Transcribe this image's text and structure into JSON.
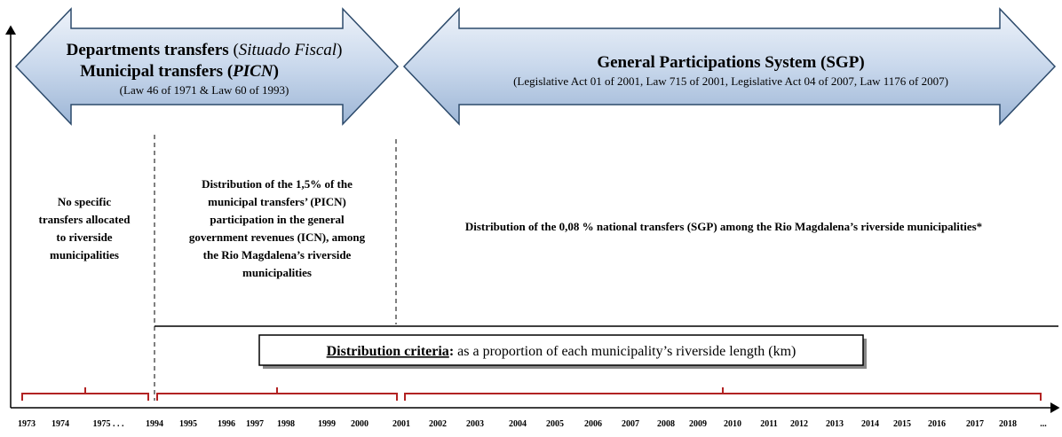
{
  "left_arrow": {
    "line1": [
      "Departments transfers ",
      "(",
      "Situado Fiscal",
      ")"
    ],
    "line2": [
      "Municipal transfers (",
      "PICN",
      ")"
    ],
    "line3": "(Law 46 of 1971 & Law 60 of 1993)"
  },
  "right_arrow": {
    "title": "General Participations System (SGP)",
    "subtitle": "(Legislative Act 01 of 2001, Law 715 of 2001, Legislative Act 04 of 2007, Law 1176 of 2007)"
  },
  "periods": [
    {
      "lines": [
        "No specific",
        "transfers allocated",
        "to riverside",
        "municipalities"
      ]
    },
    {
      "lines": [
        "Distribution of the 1,5% of the",
        "municipal transfers’ (PICN)",
        "participation in the general",
        "government revenues (ICN), among",
        "the Rio Magdalena’s riverside",
        "municipalities"
      ]
    },
    {
      "lines": [
        "Distribution of the 0,08 % national transfers (SGP) among the Rio Magdalena’s riverside municipalities*"
      ]
    }
  ],
  "criteria": [
    "Distribution criteria",
    ":",
    " as a proportion of each municipality’s riverside length (km)"
  ],
  "timeline": [
    "1973",
    "1974",
    "1975 . . .",
    "1994",
    "1995",
    "1996",
    "1997",
    "1998",
    "1999",
    "2000",
    "2001",
    "2002",
    "2003",
    "2004",
    "2005",
    "2006",
    "2007",
    "2008",
    "2009",
    "2010",
    "2011",
    "2012",
    "2013",
    "2014",
    "2015",
    "2016",
    "2017",
    "2018",
    "..."
  ]
}
